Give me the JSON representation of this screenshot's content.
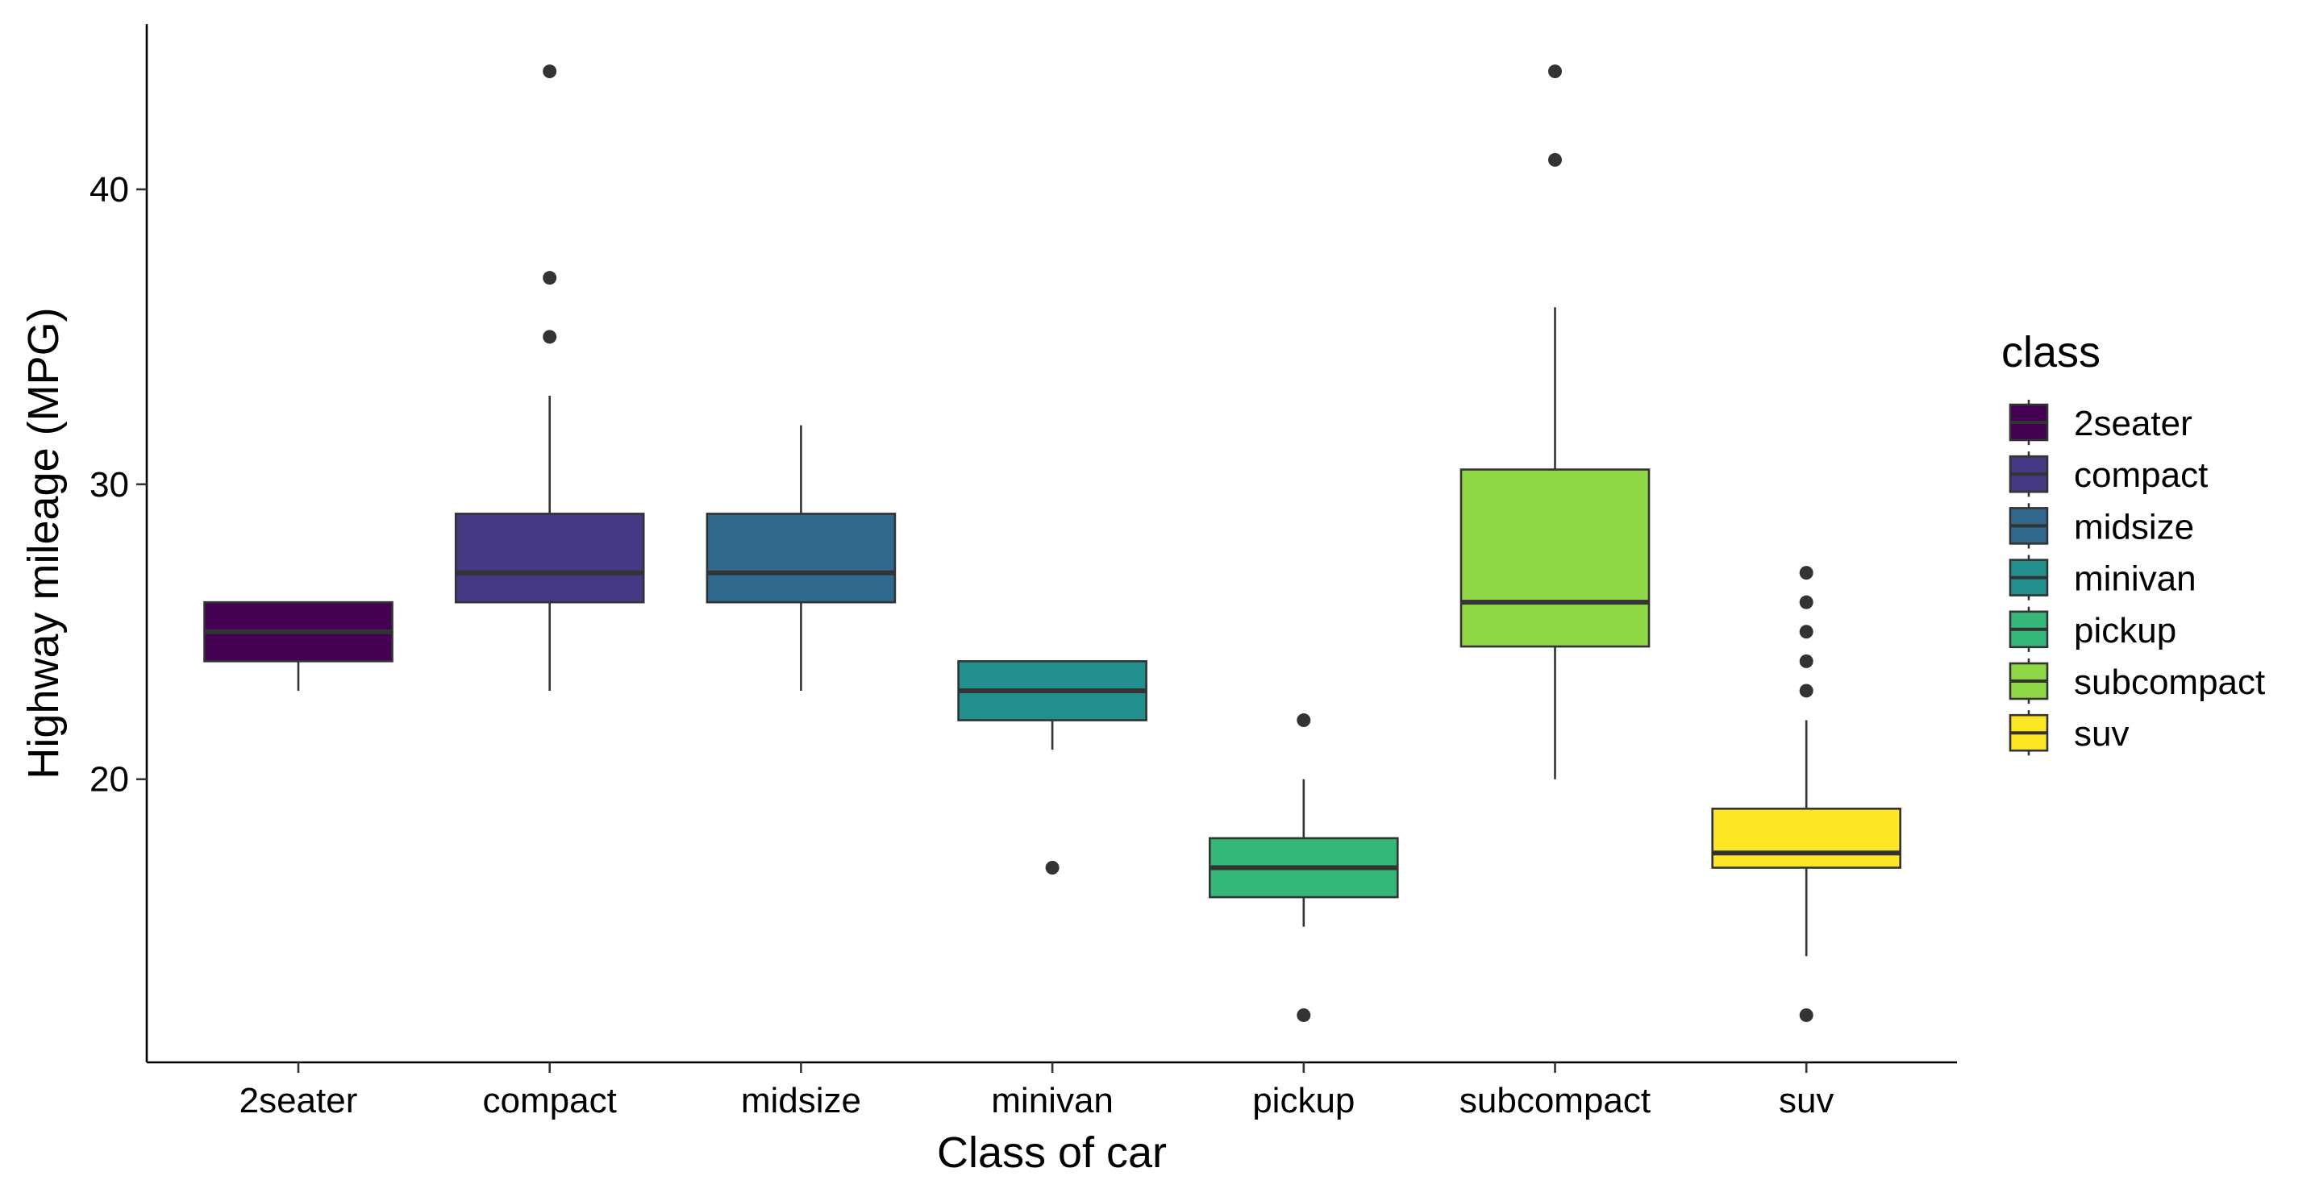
{
  "chart_data": {
    "type": "boxplot",
    "xlabel": "Class of car",
    "ylabel": "Highway mileage (MPG)",
    "ylim": [
      10.4,
      45.6
    ],
    "yticks": [
      20,
      30,
      40
    ],
    "grid": false,
    "legend": {
      "title": "class",
      "placement": "right"
    },
    "categories": [
      "2seater",
      "compact",
      "midsize",
      "minivan",
      "pickup",
      "subcompact",
      "suv"
    ],
    "colors": [
      "#440154",
      "#443A83",
      "#31688E",
      "#21908C",
      "#35B779",
      "#8FD744",
      "#FDE725"
    ],
    "boxes": [
      {
        "category": "2seater",
        "whisker_low": 23,
        "q1": 24,
        "median": 25,
        "q3": 26,
        "whisker_high": 26,
        "outliers": []
      },
      {
        "category": "compact",
        "whisker_low": 23,
        "q1": 26,
        "median": 27,
        "q3": 29,
        "whisker_high": 33,
        "outliers": [
          35,
          37,
          44
        ]
      },
      {
        "category": "midsize",
        "whisker_low": 23,
        "q1": 26,
        "median": 27,
        "q3": 29,
        "whisker_high": 32,
        "outliers": []
      },
      {
        "category": "minivan",
        "whisker_low": 21,
        "q1": 22,
        "median": 23,
        "q3": 24,
        "whisker_high": 24,
        "outliers": [
          17
        ]
      },
      {
        "category": "pickup",
        "whisker_low": 15,
        "q1": 16,
        "median": 17,
        "q3": 18,
        "whisker_high": 20,
        "outliers": [
          12,
          22
        ]
      },
      {
        "category": "subcompact",
        "whisker_low": 20,
        "q1": 24.5,
        "median": 26,
        "q3": 30.5,
        "whisker_high": 36,
        "outliers": [
          41,
          44
        ]
      },
      {
        "category": "suv",
        "whisker_low": 14,
        "q1": 17,
        "median": 17.5,
        "q3": 19,
        "whisker_high": 22,
        "outliers": [
          12,
          23,
          24,
          25,
          26,
          27
        ]
      }
    ]
  }
}
